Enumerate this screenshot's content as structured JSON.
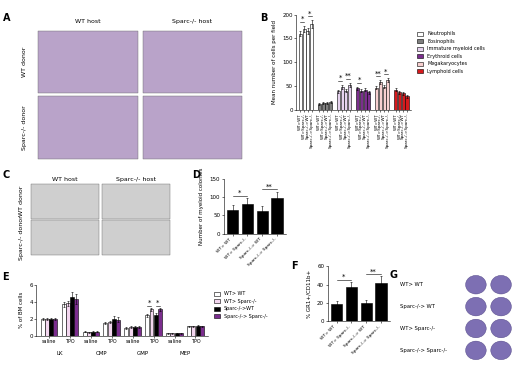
{
  "chart_data": [
    {
      "type": "clustered_bar",
      "title": "B",
      "y_label": "Mean number of cells per field",
      "categories": [
        "WT>WT",
        "WT>Sparc-/-",
        "Sparc-/->WT",
        "Sparc-/->Sparc-/-"
      ],
      "series": [
        {
          "name": "Neutrophils",
          "color": "#ffffff",
          "values": [
            160,
            170,
            165,
            180
          ],
          "errors": [
            6,
            7,
            6,
            8
          ]
        },
        {
          "name": "Eosinophils",
          "color": "#7f7f7f",
          "values": [
            12,
            14,
            13,
            15
          ],
          "errors": [
            2,
            2,
            2,
            2
          ]
        },
        {
          "name": "Immature myeloid cells",
          "color": "#e6d3ef",
          "values": [
            38,
            48,
            40,
            52
          ],
          "errors": [
            3,
            4,
            3,
            4
          ]
        },
        {
          "name": "Erythroid cells",
          "color": "#7b2d8e",
          "values": [
            45,
            40,
            42,
            36
          ],
          "errors": [
            3,
            3,
            3,
            3
          ]
        },
        {
          "name": "Megakaryocytes",
          "color": "#f8d0d0",
          "values": [
            46,
            58,
            48,
            62
          ],
          "errors": [
            3,
            4,
            3,
            4
          ]
        },
        {
          "name": "Lymphoid cells",
          "color": "#d7191c",
          "values": [
            42,
            36,
            34,
            28
          ],
          "errors": [
            3,
            3,
            3,
            3
          ]
        }
      ],
      "ylim": [
        0,
        200
      ],
      "yticks": [
        0,
        50,
        100,
        150,
        200
      ],
      "legend": "center left",
      "grid": false,
      "annotations": [
        {
          "text": "*",
          "series": "Neutrophils",
          "between": [
            "WT>WT",
            "WT>Sparc-/-"
          ]
        },
        {
          "text": "*",
          "series": "Neutrophils",
          "between": [
            "Sparc-/->WT",
            "Sparc-/->Sparc-/-"
          ]
        },
        {
          "text": "*",
          "series": "Immature myeloid cells",
          "between": [
            "WT>WT",
            "WT>Sparc-/-"
          ]
        },
        {
          "text": "**",
          "series": "Immature myeloid cells",
          "between": [
            "Sparc-/->WT",
            "Sparc-/->Sparc-/-"
          ]
        },
        {
          "text": "*",
          "series": "Erythroid cells",
          "between": [
            "WT>WT",
            "WT>Sparc-/-"
          ]
        },
        {
          "text": "**",
          "series": "Megakaryocytes",
          "between": [
            "WT>WT",
            "WT>Sparc-/-"
          ]
        },
        {
          "text": "*",
          "series": "Megakaryocytes",
          "between": [
            "Sparc-/->WT",
            "Sparc-/->Sparc-/-"
          ]
        }
      ]
    },
    {
      "type": "bar",
      "title": "D",
      "y_label": "Number of myeloid colonies",
      "categories": [
        "WT> WT",
        "WT> Sparc-/-",
        "Sparc-/-> WT",
        "Sparc-/-> Sparc-/-"
      ],
      "values": [
        65,
        82,
        62,
        97
      ],
      "errors": [
        12,
        15,
        14,
        18
      ],
      "color": "#000000",
      "ylim": [
        0,
        150
      ],
      "yticks": [
        0,
        50,
        100,
        150
      ],
      "grid": false,
      "annotations": [
        {
          "text": "*",
          "between": [
            "WT> WT",
            "WT> Sparc-/-"
          ]
        },
        {
          "text": "**",
          "between": [
            "Sparc-/-> WT",
            "Sparc-/-> Sparc-/-"
          ]
        }
      ]
    },
    {
      "type": "bar",
      "title": "E",
      "y_label": "% of BM cells",
      "categories": [
        "saline",
        "TPO",
        "saline",
        "TPO",
        "saline",
        "TPO",
        "saline",
        "TPO"
      ],
      "groups": [
        "LK",
        "CMP",
        "GMP",
        "MEP"
      ],
      "series": [
        {
          "name": "WT> WT",
          "color": "#ffffff",
          "values": [
            2.0,
            3.7,
            0.5,
            1.5,
            0.9,
            2.4,
            0.3,
            1.1
          ],
          "errors": [
            0.1,
            0.3,
            0.05,
            0.15,
            0.1,
            0.2,
            0.05,
            0.1
          ]
        },
        {
          "name": "WT> Sparc-/-",
          "color": "#f3d6ef",
          "values": [
            2.0,
            3.8,
            0.4,
            1.6,
            1.0,
            3.1,
            0.3,
            1.1
          ],
          "errors": [
            0.1,
            0.3,
            0.05,
            0.15,
            0.1,
            0.2,
            0.05,
            0.1
          ]
        },
        {
          "name": "Sparc-/->WT",
          "color": "#000000",
          "values": [
            2.0,
            4.5,
            0.5,
            2.0,
            1.0,
            2.5,
            0.3,
            1.2
          ],
          "errors": [
            0.1,
            0.6,
            0.05,
            0.3,
            0.1,
            0.2,
            0.05,
            0.1
          ]
        },
        {
          "name": "Sparc-/-> Sparc-/-",
          "color": "#7b2d8e",
          "values": [
            2.0,
            4.3,
            0.5,
            1.9,
            1.0,
            3.1,
            0.3,
            1.1
          ],
          "errors": [
            0.1,
            0.6,
            0.05,
            0.3,
            0.1,
            0.2,
            0.05,
            0.1
          ]
        }
      ],
      "ylim": [
        0,
        6
      ],
      "yticks": [
        0,
        2,
        4,
        6
      ],
      "legend": "center left",
      "grid": false,
      "annotations": [
        {
          "text": "*",
          "group": "GMP",
          "category": "TPO",
          "between": [
            "WT> WT",
            "WT> Sparc-/-"
          ]
        },
        {
          "text": "*",
          "group": "GMP",
          "category": "TPO",
          "between": [
            "Sparc-/->WT",
            "Sparc-/-> Sparc-/-"
          ]
        }
      ]
    },
    {
      "type": "bar",
      "title": "F",
      "y_label": "% GR1+/CD11b+",
      "categories": [
        "WT> WT",
        "WT> Sparc-/-",
        "Sparc-/-> WT",
        "Sparc-/-> Sparc-/-"
      ],
      "values": [
        19,
        38,
        20,
        42
      ],
      "errors": [
        3,
        5,
        3,
        7
      ],
      "color": "#000000",
      "ylim": [
        0,
        60
      ],
      "yticks": [
        0,
        20,
        40,
        60
      ],
      "grid": false,
      "annotations": [
        {
          "text": "*",
          "between": [
            "WT> WT",
            "WT> Sparc-/-"
          ]
        },
        {
          "text": "**",
          "between": [
            "Sparc-/-> WT",
            "Sparc-/-> Sparc-/-"
          ]
        }
      ]
    }
  ],
  "image_panels": [
    {
      "title": "A",
      "column_labels": [
        "WT host",
        "Sparc-/- host"
      ],
      "row_labels": [
        "WT donor",
        "Sparc-/- donor"
      ]
    },
    {
      "title": "C",
      "column_labels": [
        "WT host",
        "Sparc-/- host"
      ],
      "row_labels": [
        "WT donor",
        "Sparc-/- donor"
      ]
    },
    {
      "title": "G",
      "row_labels": [
        "WT> WT",
        "Sparc-/-> WT",
        "WT> Sparc-/-",
        "Sparc-/-> Sparc-/-"
      ]
    }
  ]
}
